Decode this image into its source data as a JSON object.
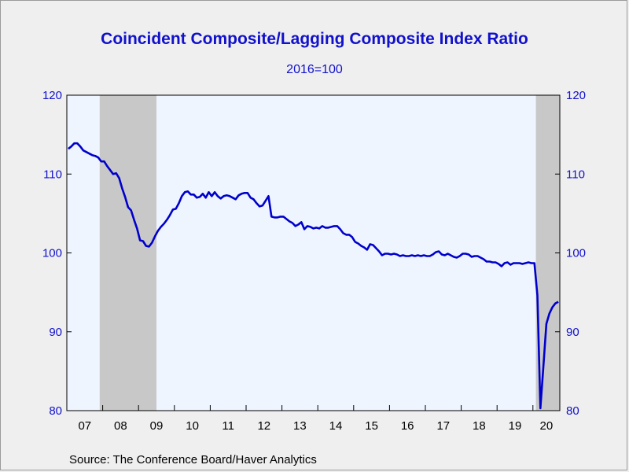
{
  "title": "Coincident Composite/Lagging Composite Index Ratio",
  "subtitle": "2016=100",
  "source": "Source:  The Conference Board/Haver Analytics",
  "colors": {
    "line": "#0000cc",
    "text": "#1111cc",
    "plot_bg": "#eef5ff",
    "recession": "#c8c8c8",
    "page_bg": "#efefef"
  },
  "chart_data": {
    "type": "line",
    "title": "Coincident Composite/Lagging Composite Index Ratio",
    "subtitle": "2016=100",
    "ylim": [
      80,
      120
    ],
    "xlim": [
      "2007-01",
      "2020-10"
    ],
    "y_ticks": [
      80,
      90,
      100,
      110,
      120
    ],
    "y_tick_labels": [
      "80",
      "90",
      "100",
      "110",
      "120"
    ],
    "x_tick_labels": [
      "07",
      "08",
      "09",
      "10",
      "11",
      "12",
      "13",
      "14",
      "15",
      "16",
      "17",
      "18",
      "19",
      "20"
    ],
    "grid": false,
    "right_axis": true,
    "recessions": [
      {
        "start": "2007-12",
        "end": "2009-06"
      },
      {
        "start": "2020-02",
        "end": "2020-09"
      }
    ],
    "series": [
      {
        "x": [
          "2007-01",
          "2007-02",
          "2007-03",
          "2007-04",
          "2007-05",
          "2007-06",
          "2007-07",
          "2007-08",
          "2007-09",
          "2007-10",
          "2007-11",
          "2007-12",
          "2008-01",
          "2008-02",
          "2008-03",
          "2008-04",
          "2008-05",
          "2008-06",
          "2008-07",
          "2008-08",
          "2008-09",
          "2008-10",
          "2008-11",
          "2008-12",
          "2009-01",
          "2009-02",
          "2009-03",
          "2009-04",
          "2009-05",
          "2009-06",
          "2009-07",
          "2009-08",
          "2009-09",
          "2009-10",
          "2009-11",
          "2009-12",
          "2010-01",
          "2010-02",
          "2010-03",
          "2010-04",
          "2010-05",
          "2010-06",
          "2010-07",
          "2010-08",
          "2010-09",
          "2010-10",
          "2010-11",
          "2010-12",
          "2011-01",
          "2011-02",
          "2011-03",
          "2011-04",
          "2011-05",
          "2011-06",
          "2011-07",
          "2011-08",
          "2011-09",
          "2011-10",
          "2011-11",
          "2011-12",
          "2012-01",
          "2012-02",
          "2012-03",
          "2012-04",
          "2012-05",
          "2012-06",
          "2012-07",
          "2012-08",
          "2012-09",
          "2012-10",
          "2012-11",
          "2012-12",
          "2013-01",
          "2013-02",
          "2013-03",
          "2013-04",
          "2013-05",
          "2013-06",
          "2013-07",
          "2013-08",
          "2013-09",
          "2013-10",
          "2013-11",
          "2013-12",
          "2014-01",
          "2014-02",
          "2014-03",
          "2014-04",
          "2014-05",
          "2014-06",
          "2014-07",
          "2014-08",
          "2014-09",
          "2014-10",
          "2014-11",
          "2014-12",
          "2015-01",
          "2015-02",
          "2015-03",
          "2015-04",
          "2015-05",
          "2015-06",
          "2015-07",
          "2015-08",
          "2015-09",
          "2015-10",
          "2015-11",
          "2015-12",
          "2016-01",
          "2016-02",
          "2016-03",
          "2016-04",
          "2016-05",
          "2016-06",
          "2016-07",
          "2016-08",
          "2016-09",
          "2016-10",
          "2016-11",
          "2016-12",
          "2017-01",
          "2017-02",
          "2017-03",
          "2017-04",
          "2017-05",
          "2017-06",
          "2017-07",
          "2017-08",
          "2017-09",
          "2017-10",
          "2017-11",
          "2017-12",
          "2018-01",
          "2018-02",
          "2018-03",
          "2018-04",
          "2018-05",
          "2018-06",
          "2018-07",
          "2018-08",
          "2018-09",
          "2018-10",
          "2018-11",
          "2018-12",
          "2019-01",
          "2019-02",
          "2019-03",
          "2019-04",
          "2019-05",
          "2019-06",
          "2019-07",
          "2019-08",
          "2019-09",
          "2019-10",
          "2019-11",
          "2019-12",
          "2020-01",
          "2020-02",
          "2020-03",
          "2020-04",
          "2020-05",
          "2020-06",
          "2020-07",
          "2020-08",
          "2020-09"
        ],
        "values": [
          113.2,
          113.5,
          113.9,
          113.9,
          113.5,
          113.0,
          112.8,
          112.6,
          112.4,
          112.3,
          112.1,
          111.6,
          111.6,
          111.0,
          110.5,
          110.0,
          110.1,
          109.5,
          108.2,
          107.1,
          105.8,
          105.4,
          104.2,
          103.1,
          101.6,
          101.5,
          100.9,
          100.8,
          101.3,
          102.1,
          102.8,
          103.3,
          103.7,
          104.2,
          104.8,
          105.5,
          105.6,
          106.3,
          107.2,
          107.7,
          107.8,
          107.4,
          107.4,
          107.0,
          107.1,
          107.5,
          107.0,
          107.7,
          107.2,
          107.7,
          107.2,
          106.9,
          107.2,
          107.3,
          107.2,
          107.0,
          106.8,
          107.3,
          107.5,
          107.6,
          107.6,
          107.0,
          106.8,
          106.3,
          105.9,
          106.0,
          106.6,
          107.2,
          104.6,
          104.5,
          104.5,
          104.6,
          104.6,
          104.3,
          104.0,
          103.8,
          103.4,
          103.6,
          103.9,
          103.0,
          103.4,
          103.3,
          103.1,
          103.2,
          103.1,
          103.4,
          103.2,
          103.2,
          103.3,
          103.4,
          103.4,
          103.0,
          102.5,
          102.3,
          102.3,
          102.0,
          101.4,
          101.2,
          100.9,
          100.7,
          100.4,
          101.1,
          101.0,
          100.6,
          100.2,
          99.7,
          99.9,
          99.9,
          99.8,
          99.9,
          99.8,
          99.6,
          99.7,
          99.6,
          99.6,
          99.7,
          99.6,
          99.7,
          99.6,
          99.7,
          99.6,
          99.6,
          99.8,
          100.1,
          100.2,
          99.8,
          99.7,
          99.9,
          99.7,
          99.5,
          99.4,
          99.6,
          99.9,
          99.9,
          99.8,
          99.5,
          99.6,
          99.6,
          99.4,
          99.2,
          98.9,
          98.9,
          98.8,
          98.8,
          98.6,
          98.3,
          98.7,
          98.8,
          98.5,
          98.7,
          98.7,
          98.7,
          98.6,
          98.7,
          98.8,
          98.7,
          98.7,
          94.6,
          80.3,
          85.6,
          91.0,
          92.3,
          93.1,
          93.6,
          93.8
        ]
      }
    ]
  }
}
